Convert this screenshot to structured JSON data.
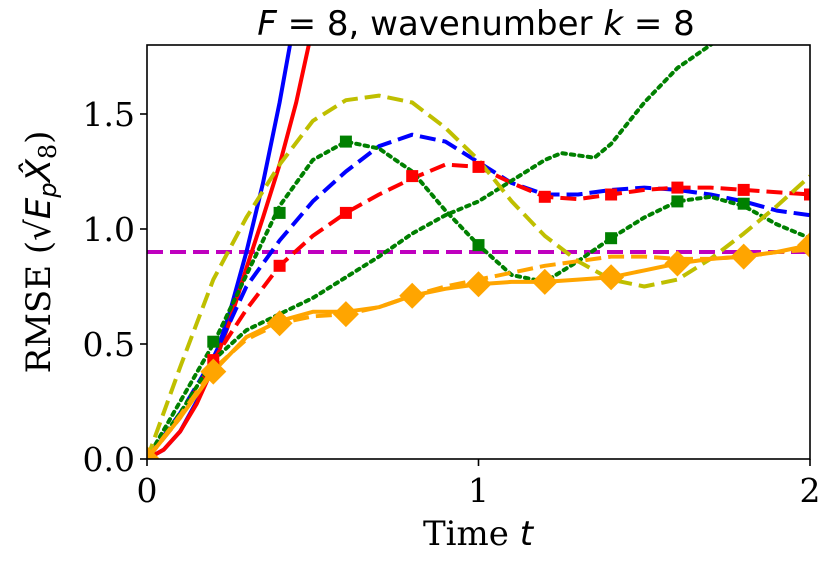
{
  "chart_data": {
    "type": "line",
    "title_prefix": "F",
    "title_eq": " = 8, wavenumber ",
    "title_k": "k",
    "title_k_eq": " = 8",
    "xlabel": "Time",
    "xlabel_var": "t",
    "ylabel": "RMSE (√E_p X̂_8)",
    "ylabel_text": "RMSE (",
    "ylabel_sqrt": "√",
    "ylabel_E": "E",
    "ylabel_p": "p",
    "ylabel_X": "X̂",
    "ylabel_8": "8",
    "ylabel_close": ")",
    "xlim": [
      0,
      2
    ],
    "ylim": [
      0,
      1.8
    ],
    "xticks": [
      0,
      1,
      2
    ],
    "xtick_labels": [
      "0",
      "1",
      "2"
    ],
    "yticks": [
      0.0,
      0.5,
      1.0,
      1.5
    ],
    "ytick_labels": [
      "0.0",
      "0.5",
      "1.0",
      "1.5"
    ],
    "threshold": {
      "y": 0.9,
      "color": "#bf00bf",
      "style": "dashed"
    },
    "series": [
      {
        "name": "blue solid",
        "color": "#0000ff",
        "style": "solid",
        "marker": "none",
        "x": [
          0,
          0.05,
          0.1,
          0.15,
          0.2,
          0.25,
          0.3,
          0.35,
          0.4,
          0.45,
          0.47
        ],
        "y": [
          0,
          0.04,
          0.12,
          0.25,
          0.42,
          0.64,
          0.9,
          1.2,
          1.55,
          1.95,
          2.1
        ]
      },
      {
        "name": "red solid",
        "color": "#ff0000",
        "style": "solid",
        "marker": "none",
        "x": [
          0,
          0.05,
          0.1,
          0.15,
          0.2,
          0.25,
          0.3,
          0.35,
          0.4,
          0.45,
          0.5,
          0.53
        ],
        "y": [
          0,
          0.04,
          0.12,
          0.24,
          0.4,
          0.6,
          0.83,
          1.05,
          1.28,
          1.55,
          1.88,
          2.1
        ]
      },
      {
        "name": "blue dashed",
        "color": "#0000ff",
        "style": "dashed",
        "marker": "none",
        "x": [
          0,
          0.1,
          0.2,
          0.3,
          0.4,
          0.5,
          0.6,
          0.7,
          0.8,
          0.9,
          1.0,
          1.1,
          1.2,
          1.3,
          1.4,
          1.5,
          1.6,
          1.7,
          1.8,
          1.9,
          2.0
        ],
        "y": [
          0,
          0.2,
          0.44,
          0.75,
          0.95,
          1.12,
          1.25,
          1.36,
          1.41,
          1.38,
          1.29,
          1.2,
          1.15,
          1.15,
          1.17,
          1.18,
          1.17,
          1.15,
          1.12,
          1.08,
          1.06
        ]
      },
      {
        "name": "red dashed squares",
        "color": "#ff0000",
        "style": "dashed",
        "marker": "square",
        "x": [
          0,
          0.1,
          0.2,
          0.3,
          0.4,
          0.5,
          0.6,
          0.7,
          0.8,
          0.9,
          1.0,
          1.1,
          1.2,
          1.3,
          1.4,
          1.5,
          1.6,
          1.7,
          1.8,
          1.9,
          2.0
        ],
        "y": [
          0,
          0.18,
          0.43,
          0.65,
          0.84,
          0.97,
          1.07,
          1.15,
          1.22,
          1.28,
          1.27,
          1.2,
          1.14,
          1.13,
          1.15,
          1.17,
          1.18,
          1.18,
          1.17,
          1.16,
          1.15
        ],
        "marker_x": [
          0.2,
          0.4,
          0.6,
          0.8,
          1.0,
          1.2,
          1.4,
          1.6,
          1.8,
          2.0
        ],
        "marker_y": [
          0.43,
          0.84,
          1.07,
          1.23,
          1.27,
          1.14,
          1.15,
          1.18,
          1.17,
          1.15
        ]
      },
      {
        "name": "green dotted squares",
        "color": "#008000",
        "style": "dotted",
        "marker": "square",
        "x": [
          0,
          0.1,
          0.2,
          0.3,
          0.4,
          0.5,
          0.6,
          0.7,
          0.8,
          0.9,
          1.0,
          1.1,
          1.2,
          1.3,
          1.4,
          1.5,
          1.6,
          1.7,
          1.8,
          1.9,
          2.0
        ],
        "y": [
          0,
          0.25,
          0.5,
          0.8,
          1.1,
          1.3,
          1.38,
          1.35,
          1.25,
          1.08,
          0.93,
          0.8,
          0.77,
          0.86,
          0.96,
          1.05,
          1.12,
          1.14,
          1.1,
          1.02,
          0.96
        ],
        "marker_x": [
          0.2,
          0.4,
          0.6,
          1.0,
          1.4,
          1.6,
          1.8
        ],
        "marker_y": [
          0.51,
          1.07,
          1.38,
          0.93,
          0.96,
          1.12,
          1.11
        ]
      },
      {
        "name": "green dotted",
        "color": "#008000",
        "style": "dotted",
        "marker": "none",
        "x": [
          0,
          0.1,
          0.2,
          0.3,
          0.4,
          0.5,
          0.6,
          0.7,
          0.8,
          0.9,
          1.0,
          1.1,
          1.2,
          1.25,
          1.3,
          1.35,
          1.4,
          1.5,
          1.6,
          1.7,
          1.76
        ],
        "y": [
          0,
          0.2,
          0.43,
          0.56,
          0.63,
          0.7,
          0.79,
          0.88,
          0.98,
          1.06,
          1.12,
          1.21,
          1.3,
          1.33,
          1.32,
          1.31,
          1.37,
          1.55,
          1.7,
          1.8,
          1.87
        ]
      },
      {
        "name": "yellow dashed",
        "color": "#bfbf00",
        "style": "dashed",
        "marker": "none",
        "x": [
          0,
          0.1,
          0.2,
          0.3,
          0.4,
          0.5,
          0.6,
          0.7,
          0.8,
          0.9,
          1.0,
          1.1,
          1.2,
          1.3,
          1.4,
          1.5,
          1.6,
          1.7,
          1.8,
          1.9,
          2.0
        ],
        "y": [
          0,
          0.4,
          0.78,
          1.05,
          1.28,
          1.47,
          1.56,
          1.58,
          1.55,
          1.44,
          1.3,
          1.12,
          0.97,
          0.86,
          0.78,
          0.75,
          0.78,
          0.87,
          0.98,
          1.1,
          1.23
        ]
      },
      {
        "name": "orange solid diamonds",
        "color": "#ffa500",
        "style": "solid",
        "marker": "diamond",
        "x": [
          0,
          0.1,
          0.2,
          0.3,
          0.4,
          0.5,
          0.6,
          0.7,
          0.8,
          0.9,
          1.0,
          1.1,
          1.2,
          1.3,
          1.4,
          1.5,
          1.6,
          1.7,
          1.8,
          1.9,
          2.0
        ],
        "y": [
          0,
          0.18,
          0.38,
          0.53,
          0.6,
          0.64,
          0.64,
          0.66,
          0.71,
          0.74,
          0.76,
          0.77,
          0.77,
          0.78,
          0.79,
          0.82,
          0.85,
          0.87,
          0.88,
          0.9,
          0.93
        ],
        "marker_x": [
          0,
          0.2,
          0.4,
          0.6,
          0.8,
          1.0,
          1.2,
          1.4,
          1.6,
          1.8,
          2.0
        ],
        "marker_y": [
          0.0,
          0.38,
          0.59,
          0.63,
          0.71,
          0.76,
          0.77,
          0.79,
          0.85,
          0.88,
          0.93
        ]
      },
      {
        "name": "orange dashed",
        "color": "#ffa500",
        "style": "dashed",
        "marker": "none",
        "x": [
          0,
          0.1,
          0.2,
          0.3,
          0.4,
          0.5,
          0.6,
          0.7,
          0.8,
          0.9,
          1.0,
          1.1,
          1.2,
          1.3,
          1.4,
          1.5,
          1.6,
          1.7,
          1.8,
          1.9,
          2.0
        ],
        "y": [
          0,
          0.19,
          0.39,
          0.52,
          0.59,
          0.62,
          0.63,
          0.66,
          0.71,
          0.75,
          0.78,
          0.81,
          0.84,
          0.86,
          0.88,
          0.88,
          0.87,
          0.87,
          0.88,
          0.9,
          0.91
        ]
      }
    ]
  }
}
